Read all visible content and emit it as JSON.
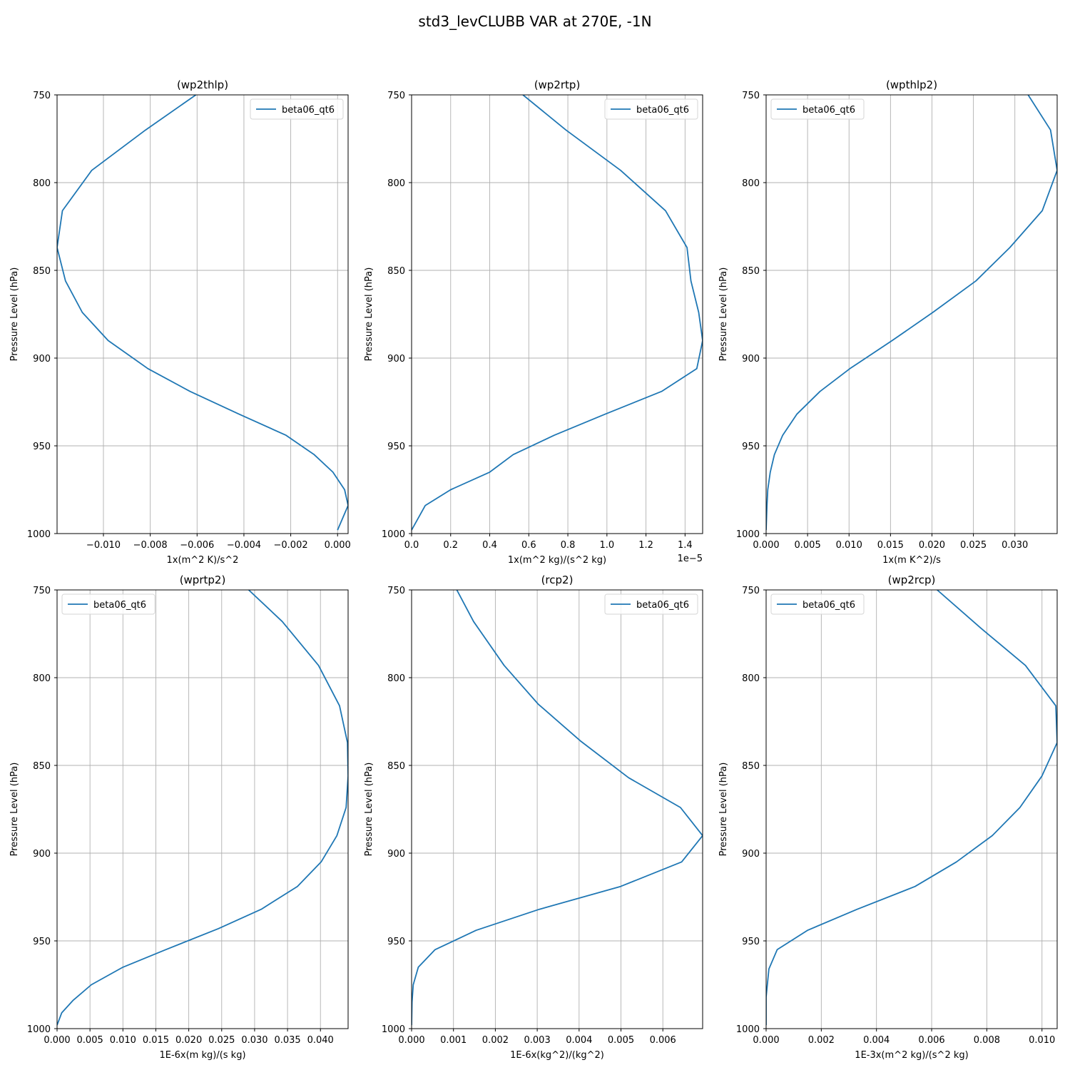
{
  "figure": {
    "title": "std3_levCLUBB VAR at 270E, -1N"
  },
  "chart_data": [
    {
      "type": "line",
      "title": "(wp2thlp)",
      "xlabel": "1x(m^2 K)/s^2",
      "ylabel": "Pressure Level (hPa)",
      "x_offset_label": "",
      "xlim": [
        -0.01198,
        0.00045
      ],
      "ylim": [
        1000,
        750
      ],
      "xticks": [
        -0.01,
        -0.008,
        -0.006,
        -0.004,
        -0.002,
        0.0
      ],
      "xtick_labels": [
        "−0.010",
        "−0.008",
        "−0.006",
        "−0.004",
        "−0.002",
        "0.000"
      ],
      "yticks": [
        750,
        800,
        850,
        900,
        950,
        1000
      ],
      "ytick_labels": [
        "750",
        "800",
        "850",
        "900",
        "950",
        "1000"
      ],
      "grid": true,
      "legend": {
        "position": "top-right",
        "entries": [
          "beta06_qt6"
        ]
      },
      "series": [
        {
          "name": "beta06_qt6",
          "x": [
            -0.00605,
            -0.0082,
            -0.0105,
            -0.01175,
            -0.01198,
            -0.01162,
            -0.0109,
            -0.0098,
            -0.0081,
            -0.0063,
            -0.0042,
            -0.0022,
            -0.001,
            -0.0002,
            0.0003,
            0.00045,
            0.0
          ],
          "y": [
            750,
            770,
            793,
            816,
            837,
            856,
            874,
            890,
            906,
            919,
            932,
            944,
            955,
            965,
            975,
            984,
            998
          ]
        }
      ]
    },
    {
      "type": "line",
      "title": "(wp2rtp)",
      "xlabel": "1x(m^2 kg)/(s^2 kg)",
      "ylabel": "Pressure Level (hPa)",
      "x_offset_label": "1e−5",
      "xlim": [
        0.0,
        1.49
      ],
      "ylim": [
        1000,
        750
      ],
      "xticks": [
        0.0,
        0.2,
        0.4,
        0.6,
        0.8,
        1.0,
        1.2,
        1.4
      ],
      "xtick_labels": [
        "0.0",
        "0.2",
        "0.4",
        "0.6",
        "0.8",
        "1.0",
        "1.2",
        "1.4"
      ],
      "yticks": [
        750,
        800,
        850,
        900,
        950,
        1000
      ],
      "ytick_labels": [
        "750",
        "800",
        "850",
        "900",
        "950",
        "1000"
      ],
      "grid": true,
      "legend": {
        "position": "top-right",
        "entries": [
          "beta06_qt6"
        ]
      },
      "series": [
        {
          "name": "beta06_qt6",
          "x": [
            0.57,
            0.79,
            1.07,
            1.3,
            1.41,
            1.43,
            1.47,
            1.49,
            1.46,
            1.28,
            0.99,
            0.73,
            0.52,
            0.4,
            0.2,
            0.07,
            0.0
          ],
          "y": [
            750,
            770,
            793,
            816,
            837,
            856,
            874,
            890,
            906,
            919,
            932,
            944,
            955,
            965,
            975,
            984,
            998
          ]
        }
      ]
    },
    {
      "type": "line",
      "title": "(wpthlp2)",
      "xlabel": "1x(m K^2)/s",
      "ylabel": "Pressure Level (hPa)",
      "x_offset_label": "",
      "xlim": [
        0.0,
        0.0351
      ],
      "ylim": [
        1000,
        750
      ],
      "xticks": [
        0.0,
        0.005,
        0.01,
        0.015,
        0.02,
        0.025,
        0.03
      ],
      "xtick_labels": [
        "0.000",
        "0.005",
        "0.010",
        "0.015",
        "0.020",
        "0.025",
        "0.030"
      ],
      "yticks": [
        750,
        800,
        850,
        900,
        950,
        1000
      ],
      "ytick_labels": [
        "750",
        "800",
        "850",
        "900",
        "950",
        "1000"
      ],
      "grid": true,
      "legend": {
        "position": "top-left",
        "entries": [
          "beta06_qt6"
        ]
      },
      "series": [
        {
          "name": "beta06_qt6",
          "x": [
            0.0316,
            0.0343,
            0.0351,
            0.0333,
            0.0294,
            0.0253,
            0.0201,
            0.0152,
            0.0101,
            0.0065,
            0.0037,
            0.002,
            0.001,
            0.0005,
            0.0002,
            0.0001,
            0.0
          ],
          "y": [
            750,
            770,
            793,
            816,
            837,
            856,
            874,
            890,
            906,
            919,
            932,
            944,
            955,
            965,
            975,
            984,
            998
          ]
        }
      ]
    },
    {
      "type": "line",
      "title": "(wprtp2)",
      "xlabel": "1E-6x(m kg)/(s kg)",
      "ylabel": "Pressure Level (hPa)",
      "x_offset_label": "",
      "xlim": [
        0.0,
        0.0442
      ],
      "ylim": [
        1000,
        750
      ],
      "xticks": [
        0.0,
        0.005,
        0.01,
        0.015,
        0.02,
        0.025,
        0.03,
        0.035,
        0.04
      ],
      "xtick_labels": [
        "0.000",
        "0.005",
        "0.010",
        "0.015",
        "0.020",
        "0.025",
        "0.030",
        "0.035",
        "0.040"
      ],
      "yticks": [
        750,
        800,
        850,
        900,
        950,
        1000
      ],
      "ytick_labels": [
        "750",
        "800",
        "850",
        "900",
        "950",
        "1000"
      ],
      "grid": true,
      "legend": {
        "position": "top-left",
        "entries": [
          "beta06_qt6"
        ]
      },
      "series": [
        {
          "name": "beta06_qt6",
          "x": [
            0.0291,
            0.0342,
            0.0397,
            0.0429,
            0.0441,
            0.0442,
            0.0439,
            0.0425,
            0.0401,
            0.0365,
            0.031,
            0.0245,
            0.0165,
            0.01,
            0.0052,
            0.0024,
            0.0007,
            0.0
          ],
          "y": [
            750,
            768,
            793,
            816,
            837,
            856,
            874,
            890,
            905,
            919,
            932,
            943,
            955,
            965,
            975,
            984,
            991,
            998
          ]
        }
      ]
    },
    {
      "type": "line",
      "title": "(rcp2)",
      "xlabel": "1E-6x(kg^2)/(kg^2)",
      "ylabel": "Pressure Level (hPa)",
      "x_offset_label": "",
      "xlim": [
        0.0,
        0.00695
      ],
      "ylim": [
        1000,
        750
      ],
      "xticks": [
        0.0,
        0.001,
        0.002,
        0.003,
        0.004,
        0.005,
        0.006
      ],
      "xtick_labels": [
        "0.000",
        "0.001",
        "0.002",
        "0.003",
        "0.004",
        "0.005",
        "0.006"
      ],
      "yticks": [
        750,
        800,
        850,
        900,
        950,
        1000
      ],
      "ytick_labels": [
        "750",
        "800",
        "850",
        "900",
        "950",
        "1000"
      ],
      "grid": true,
      "legend": {
        "position": "top-right",
        "entries": [
          "beta06_qt6"
        ]
      },
      "series": [
        {
          "name": "beta06_qt6",
          "x": [
            0.00108,
            0.00148,
            0.00221,
            0.00302,
            0.00403,
            0.00518,
            0.00642,
            0.00695,
            0.00645,
            0.00499,
            0.00305,
            0.00154,
            0.00056,
            0.00016,
            4e-05,
            1e-05,
            0.0
          ],
          "y": [
            750,
            768,
            793,
            815,
            836,
            857,
            874,
            890,
            905,
            919,
            932,
            944,
            955,
            965,
            975,
            985,
            998
          ]
        }
      ]
    },
    {
      "type": "line",
      "title": "(wp2rcp)",
      "xlabel": "1E-3x(m^2 kg)/(s^2 kg)",
      "ylabel": "Pressure Level (hPa)",
      "x_offset_label": "",
      "xlim": [
        0.0,
        0.01055
      ],
      "ylim": [
        1000,
        750
      ],
      "xticks": [
        0.0,
        0.002,
        0.004,
        0.006,
        0.008,
        0.01
      ],
      "xtick_labels": [
        "0.000",
        "0.002",
        "0.004",
        "0.006",
        "0.008",
        "0.010"
      ],
      "yticks": [
        750,
        800,
        850,
        900,
        950,
        1000
      ],
      "ytick_labels": [
        "750",
        "800",
        "850",
        "900",
        "950",
        "1000"
      ],
      "grid": true,
      "legend": {
        "position": "top-left",
        "entries": [
          "beta06_qt6"
        ]
      },
      "series": [
        {
          "name": "beta06_qt6",
          "x": [
            0.0062,
            0.0078,
            0.0094,
            0.0105,
            0.01055,
            0.01,
            0.0092,
            0.0082,
            0.0069,
            0.0054,
            0.0033,
            0.0015,
            0.0004,
            0.0001,
            0.0,
            0.0
          ],
          "y": [
            750,
            772,
            793,
            816,
            837,
            856,
            874,
            890,
            905,
            919,
            932,
            944,
            955,
            966,
            982,
            998
          ]
        }
      ]
    }
  ]
}
